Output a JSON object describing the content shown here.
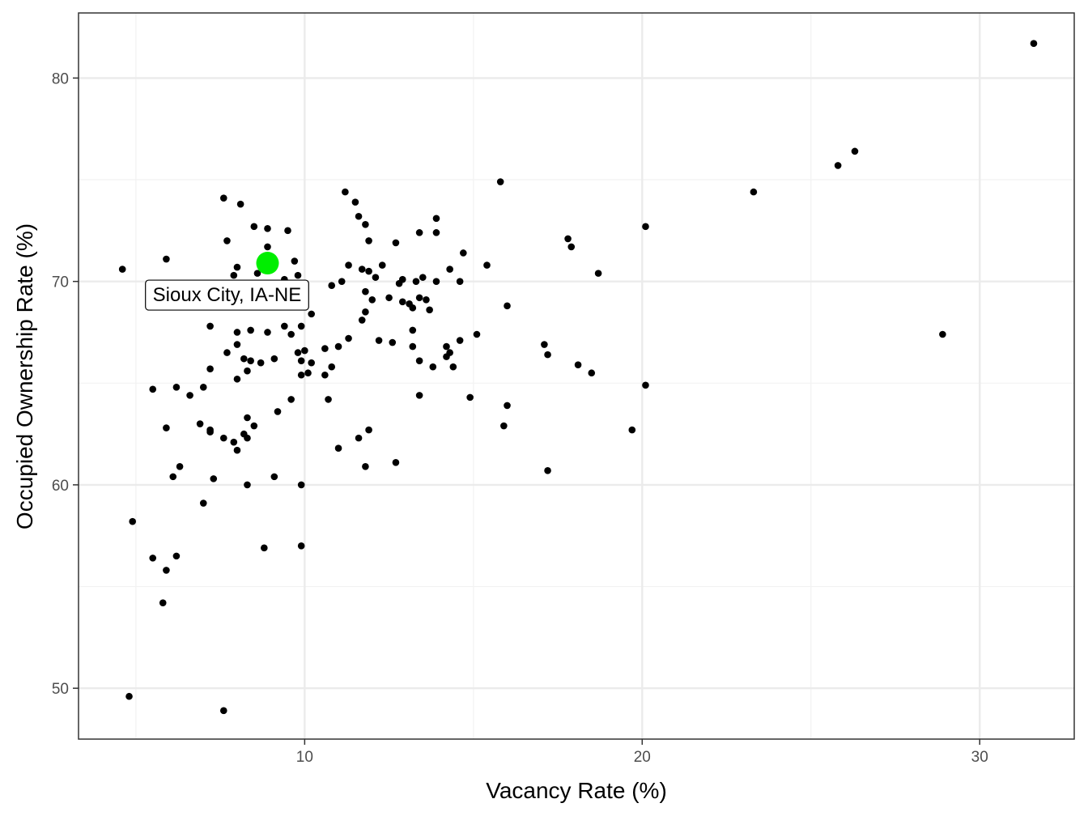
{
  "chart_data": {
    "type": "scatter",
    "title": "",
    "xlabel": "Vacancy Rate (%)",
    "ylabel": "Occupied Ownership Rate (%)",
    "xlim": [
      3.3,
      32.8
    ],
    "ylim": [
      47.5,
      83.2
    ],
    "x_ticks": [
      10,
      20,
      30
    ],
    "y_ticks": [
      50,
      60,
      70,
      80
    ],
    "grid": true,
    "point_color": "#000000",
    "highlight_color": "#00ee00",
    "highlight": {
      "label": "Sioux City, IA-NE",
      "x": 8.9,
      "y": 70.9
    },
    "points": [
      [
        4.6,
        70.6
      ],
      [
        5.9,
        71.1
      ],
      [
        7.6,
        74.1
      ],
      [
        8.1,
        73.8
      ],
      [
        7.7,
        72.0
      ],
      [
        8.5,
        72.7
      ],
      [
        8.9,
        72.6
      ],
      [
        9.5,
        72.5
      ],
      [
        8.9,
        71.7
      ],
      [
        8.0,
        70.7
      ],
      [
        7.9,
        70.3
      ],
      [
        8.6,
        70.4
      ],
      [
        9.4,
        70.1
      ],
      [
        9.7,
        71.0
      ],
      [
        9.8,
        70.3
      ],
      [
        8.3,
        69.8
      ],
      [
        9.1,
        69.8
      ],
      [
        8.2,
        69.1
      ],
      [
        8.9,
        68.8
      ],
      [
        9.7,
        69.2
      ],
      [
        9.9,
        68.9
      ],
      [
        10.2,
        68.4
      ],
      [
        10.8,
        69.8
      ],
      [
        11.1,
        70.0
      ],
      [
        11.3,
        70.8
      ],
      [
        11.7,
        70.6
      ],
      [
        11.9,
        70.5
      ],
      [
        12.1,
        70.2
      ],
      [
        12.3,
        70.8
      ],
      [
        12.8,
        69.9
      ],
      [
        12.9,
        70.1
      ],
      [
        13.3,
        70.0
      ],
      [
        13.5,
        70.2
      ],
      [
        13.9,
        70.0
      ],
      [
        14.6,
        70.0
      ],
      [
        14.3,
        70.6
      ],
      [
        14.7,
        71.4
      ],
      [
        15.4,
        70.8
      ],
      [
        11.2,
        74.4
      ],
      [
        11.5,
        73.9
      ],
      [
        11.6,
        73.2
      ],
      [
        11.8,
        72.8
      ],
      [
        11.9,
        72.0
      ],
      [
        12.7,
        71.9
      ],
      [
        13.4,
        72.4
      ],
      [
        13.9,
        73.1
      ],
      [
        13.9,
        72.4
      ],
      [
        15.8,
        74.9
      ],
      [
        12.5,
        69.2
      ],
      [
        12.9,
        69.0
      ],
      [
        13.1,
        68.9
      ],
      [
        13.2,
        68.7
      ],
      [
        13.4,
        69.2
      ],
      [
        13.6,
        69.1
      ],
      [
        13.7,
        68.6
      ],
      [
        11.8,
        69.5
      ],
      [
        11.8,
        68.5
      ],
      [
        11.7,
        68.1
      ],
      [
        12.0,
        69.1
      ],
      [
        16.0,
        68.8
      ],
      [
        17.8,
        72.1
      ],
      [
        17.9,
        71.7
      ],
      [
        18.7,
        70.4
      ],
      [
        20.1,
        72.7
      ],
      [
        23.3,
        74.4
      ],
      [
        25.8,
        75.7
      ],
      [
        26.3,
        76.4
      ],
      [
        28.9,
        67.4
      ],
      [
        31.6,
        81.7
      ],
      [
        7.2,
        67.8
      ],
      [
        8.0,
        67.5
      ],
      [
        8.4,
        67.6
      ],
      [
        8.9,
        67.5
      ],
      [
        9.4,
        67.8
      ],
      [
        9.6,
        67.4
      ],
      [
        9.9,
        67.8
      ],
      [
        9.8,
        66.5
      ],
      [
        10.0,
        66.6
      ],
      [
        10.6,
        66.7
      ],
      [
        11.0,
        66.8
      ],
      [
        11.3,
        67.2
      ],
      [
        12.2,
        67.1
      ],
      [
        12.6,
        67.0
      ],
      [
        13.2,
        67.6
      ],
      [
        13.2,
        66.8
      ],
      [
        14.2,
        66.8
      ],
      [
        14.6,
        67.1
      ],
      [
        15.1,
        67.4
      ],
      [
        7.7,
        66.5
      ],
      [
        8.0,
        66.9
      ],
      [
        8.2,
        66.2
      ],
      [
        8.4,
        66.1
      ],
      [
        8.7,
        66.0
      ],
      [
        9.1,
        66.2
      ],
      [
        9.9,
        66.1
      ],
      [
        10.2,
        66.0
      ],
      [
        8.0,
        65.2
      ],
      [
        8.3,
        65.6
      ],
      [
        7.2,
        65.7
      ],
      [
        9.9,
        65.4
      ],
      [
        10.1,
        65.5
      ],
      [
        10.6,
        65.4
      ],
      [
        10.8,
        65.8
      ],
      [
        13.4,
        66.1
      ],
      [
        13.8,
        65.8
      ],
      [
        14.2,
        66.3
      ],
      [
        14.3,
        66.5
      ],
      [
        14.4,
        65.8
      ],
      [
        17.1,
        66.9
      ],
      [
        17.2,
        66.4
      ],
      [
        18.1,
        65.9
      ],
      [
        18.5,
        65.5
      ],
      [
        20.1,
        64.9
      ],
      [
        5.5,
        64.7
      ],
      [
        6.2,
        64.8
      ],
      [
        6.6,
        64.4
      ],
      [
        7.0,
        64.8
      ],
      [
        8.3,
        63.3
      ],
      [
        9.2,
        63.6
      ],
      [
        9.6,
        64.2
      ],
      [
        10.7,
        64.2
      ],
      [
        13.4,
        64.4
      ],
      [
        14.9,
        64.3
      ],
      [
        15.9,
        62.9
      ],
      [
        16.0,
        63.9
      ],
      [
        19.7,
        62.7
      ],
      [
        5.9,
        62.8
      ],
      [
        6.9,
        63.0
      ],
      [
        7.2,
        62.7
      ],
      [
        7.2,
        62.6
      ],
      [
        7.6,
        62.3
      ],
      [
        7.9,
        62.1
      ],
      [
        8.0,
        61.7
      ],
      [
        8.2,
        62.5
      ],
      [
        8.3,
        62.3
      ],
      [
        8.5,
        62.9
      ],
      [
        11.0,
        61.8
      ],
      [
        11.6,
        62.3
      ],
      [
        11.9,
        62.7
      ],
      [
        12.7,
        61.1
      ],
      [
        6.1,
        60.4
      ],
      [
        6.3,
        60.9
      ],
      [
        7.3,
        60.3
      ],
      [
        8.3,
        60.0
      ],
      [
        9.1,
        60.4
      ],
      [
        9.9,
        60.0
      ],
      [
        11.8,
        60.9
      ],
      [
        17.2,
        60.7
      ],
      [
        7.0,
        59.1
      ],
      [
        4.9,
        58.2
      ],
      [
        5.5,
        56.4
      ],
      [
        5.9,
        55.8
      ],
      [
        6.2,
        56.5
      ],
      [
        5.8,
        54.2
      ],
      [
        8.8,
        56.9
      ],
      [
        9.9,
        57.0
      ],
      [
        4.8,
        49.6
      ],
      [
        7.6,
        48.9
      ]
    ]
  }
}
